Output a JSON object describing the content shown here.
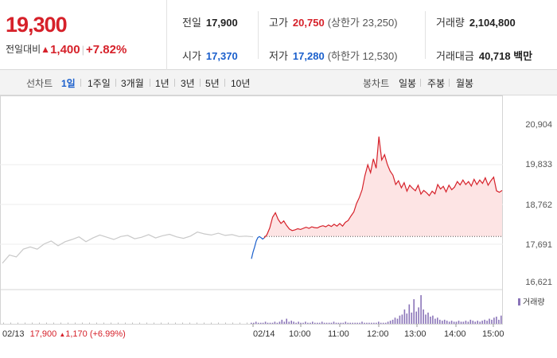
{
  "quote": {
    "price": "19,300",
    "change_label": "전일대비",
    "change_arrow": "▲",
    "change_amount": "1,400",
    "change_pct": "+7.82%",
    "stats": {
      "prev_close": {
        "label": "전일",
        "value": "17,900"
      },
      "high": {
        "label": "고가",
        "value": "20,750",
        "sub": "(상한가 23,250)"
      },
      "volume": {
        "label": "거래량",
        "value": "2,104,800"
      },
      "open": {
        "label": "시가",
        "value": "17,370"
      },
      "low": {
        "label": "저가",
        "value": "17,280",
        "sub": "(하한가 12,530)"
      },
      "trade_value": {
        "label": "거래대금",
        "value": "40,718 백만"
      }
    }
  },
  "toolbar": {
    "line_label": "선차트",
    "periods": [
      "1일",
      "1주일",
      "3개월",
      "1년",
      "3년",
      "5년",
      "10년"
    ],
    "active_period": "1일",
    "candle_label": "봉차트",
    "candles": [
      "일봉",
      "주봉",
      "월봉"
    ]
  },
  "chart_data": {
    "type": "line",
    "ylim": [
      16621,
      20904
    ],
    "yticks": [
      "20,904",
      "19,833",
      "18,762",
      "17,691",
      "16,621"
    ],
    "x_labels": [
      "02/14",
      "10:00",
      "11:00",
      "12:00",
      "13:00",
      "14:00",
      "15:00"
    ],
    "baseline": 17900,
    "prev_day_label": {
      "date": "02/13",
      "close": "17,900",
      "arrow": "▲",
      "change": "1,170",
      "pct": "(+6.99%)"
    },
    "volume_legend": "거래량",
    "colors": {
      "up": "#d6212a",
      "down": "#1a5fcc",
      "prev": "#c9c9c9",
      "fill": "#fde4e4",
      "volume": "#8a74b8"
    },
    "series": [
      {
        "values": [
          17180,
          17400,
          17350,
          17560,
          17620,
          17560,
          17700,
          17780,
          17650,
          17760,
          17820,
          17890,
          17760,
          17860,
          17940,
          17880,
          17820,
          17900,
          17930,
          17840,
          17880,
          17950,
          17860,
          17920,
          17960,
          17890,
          17850,
          17910,
          18020,
          17970,
          17940,
          17990,
          17930,
          17950,
          17900,
          17910,
          17890
        ]
      },
      {
        "values": [
          17300,
          17480,
          17620,
          17780,
          17870,
          17900,
          17870,
          17830,
          17860
        ]
      },
      {
        "values": [
          17860,
          17950,
          18130,
          18420,
          18540,
          18360,
          18250,
          18320,
          18200,
          18100,
          18060,
          18080,
          18110,
          18090,
          18120,
          18150,
          18120,
          18160,
          18140,
          18130,
          18170,
          18190,
          18160,
          18210,
          18170,
          18230,
          18180,
          18250,
          18180,
          18280,
          18330,
          18450,
          18560,
          18790,
          18950,
          19160,
          19540,
          19830,
          19620,
          19990,
          19740,
          20590,
          19960,
          20100,
          19840,
          19660,
          19550,
          19300,
          19400,
          19210,
          19350,
          19120,
          19280,
          19200,
          19130,
          19280,
          19040,
          19140,
          19080,
          19000,
          19120,
          19050,
          19300,
          19180,
          19250,
          19100,
          19280,
          19160,
          19230,
          19380,
          19290,
          19420,
          19300,
          19380,
          19260,
          19440,
          19300,
          19420,
          19330,
          19480,
          19280,
          19400,
          19500,
          19130,
          19090,
          19140
        ]
      }
    ],
    "volume": [
      1,
      1,
      2,
      1,
      1,
      1,
      2,
      1,
      1,
      1,
      2,
      1,
      2,
      4,
      2,
      5,
      2,
      3,
      2,
      1,
      2,
      1,
      1,
      2,
      1,
      1,
      2,
      1,
      1,
      1,
      2,
      1,
      1,
      1,
      1,
      2,
      1,
      1,
      1,
      1,
      2,
      1,
      1,
      1,
      1,
      1,
      1,
      2,
      1,
      1,
      1,
      1,
      1,
      1,
      2,
      1,
      1,
      1,
      2,
      3,
      4,
      6,
      5,
      8,
      9,
      14,
      10,
      19,
      11,
      24,
      12,
      16,
      28,
      14,
      9,
      11,
      7,
      8,
      5,
      6,
      4,
      3,
      4,
      3,
      2,
      3,
      2,
      2,
      3,
      2,
      2,
      3,
      2,
      4,
      3,
      2,
      3,
      2,
      3,
      4,
      3,
      5,
      4,
      6,
      7,
      4,
      8
    ]
  }
}
